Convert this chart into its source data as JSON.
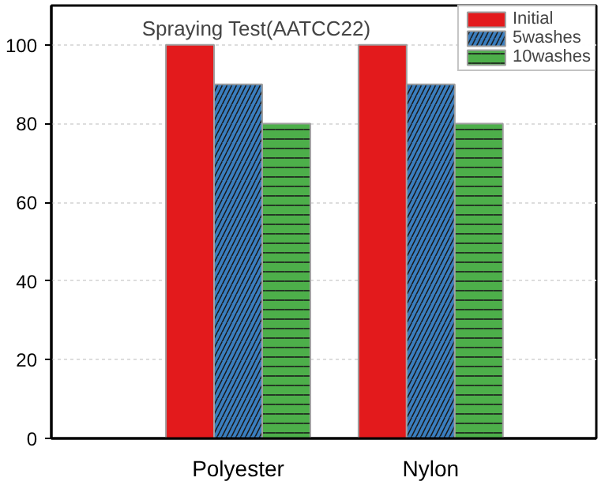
{
  "chart_data": {
    "type": "bar",
    "title": "Spraying Test(AATCC22)",
    "categories": [
      "Polyester",
      "Nylon"
    ],
    "series": [
      {
        "name": "Initial",
        "color": "#e31a1c",
        "values": [
          100,
          100
        ]
      },
      {
        "name": "5washes",
        "color": "#3a7ebf",
        "values": [
          90,
          90
        ]
      },
      {
        "name": "10washes",
        "color": "#4daf4a",
        "values": [
          80,
          80
        ]
      }
    ],
    "ylim": [
      0,
      110
    ],
    "yticks": [
      0,
      20,
      40,
      60,
      80,
      100
    ],
    "grid": "y",
    "legend": "top right"
  }
}
